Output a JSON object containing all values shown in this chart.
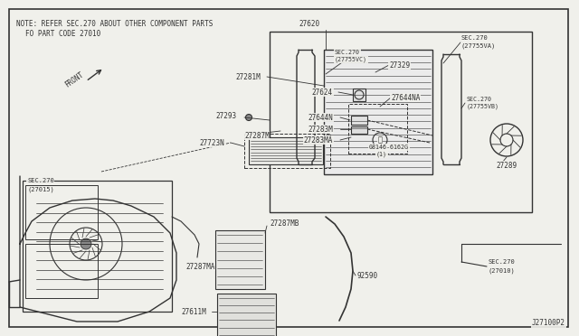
{
  "bg_color": "#f0f0eb",
  "border_color": "#333333",
  "line_color": "#333333",
  "text_color": "#333333",
  "note_line1": "NOTE: REFER SEC.270 ABOUT OTHER COMPONENT PARTS",
  "note_line2": "FO PART CODE 27010",
  "diagram_id": "J27100P2",
  "label_fs": 5.5,
  "note_fs": 5.8
}
